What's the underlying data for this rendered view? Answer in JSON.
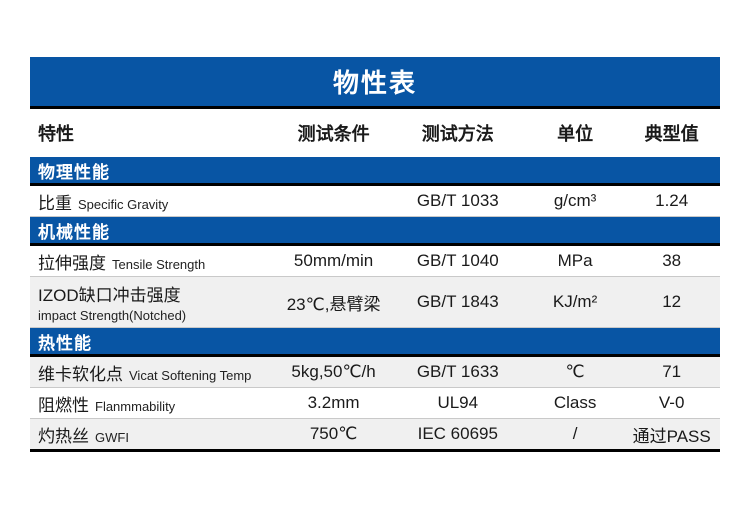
{
  "table": {
    "title": "物性表",
    "accent_color": "#0855a4",
    "alt_row_color": "#f0f0f0",
    "columns": [
      "特性",
      "测试条件",
      "测试方法",
      "单位",
      "典型值"
    ],
    "sections": [
      {
        "name": "物理性能",
        "rows": [
          {
            "property_zh": "比重",
            "property_en": "Specific Gravity",
            "condition": "",
            "method": "GB/T 1033",
            "unit": "g/cm³",
            "value": "1.24",
            "shaded": false,
            "stacked": false
          }
        ]
      },
      {
        "name": "机械性能",
        "rows": [
          {
            "property_zh": "拉伸强度",
            "property_en": "Tensile Strength",
            "condition": "50mm/min",
            "method": "GB/T 1040",
            "unit": "MPa",
            "value": "38",
            "shaded": false,
            "stacked": false
          },
          {
            "property_zh": "IZOD缺口冲击强度",
            "property_en": "impact Strength(Notched)",
            "condition": "23℃,悬臂梁",
            "method": "GB/T 1843",
            "unit": "KJ/m²",
            "value": "12",
            "shaded": true,
            "stacked": true
          }
        ]
      },
      {
        "name": "热性能",
        "rows": [
          {
            "property_zh": "维卡软化点",
            "property_en": "Vicat Softening Temp",
            "condition": "5kg,50℃/h",
            "method": "GB/T 1633",
            "unit": "℃",
            "value": "71",
            "shaded": true,
            "stacked": false
          },
          {
            "property_zh": "阻燃性",
            "property_en": "Flanmmability",
            "condition": "3.2mm",
            "method": "UL94",
            "unit": "Class",
            "value": "V-0",
            "shaded": false,
            "stacked": false
          },
          {
            "property_zh": "灼热丝",
            "property_en": "GWFI",
            "condition": "750℃",
            "method": "IEC 60695",
            "unit": "/",
            "value": "通过PASS",
            "shaded": true,
            "stacked": false
          }
        ]
      }
    ]
  }
}
